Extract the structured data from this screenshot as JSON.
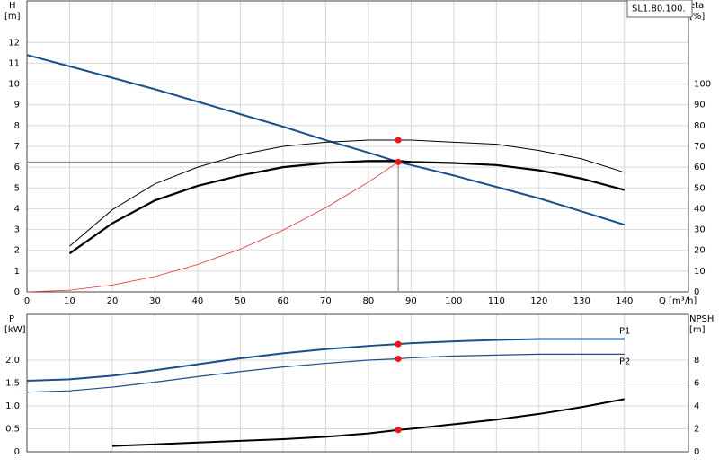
{
  "chart_data": [
    {
      "type": "line",
      "title": "SL1.80.100.",
      "y_label": "H",
      "y_unit": "[m]",
      "y2_label": "eta",
      "y2_unit": "[%]",
      "x_label": "Q [m³/h]",
      "x": [
        0,
        10,
        20,
        30,
        40,
        50,
        60,
        70,
        80,
        87,
        90,
        100,
        110,
        120,
        130,
        140
      ],
      "xlim": [
        0,
        155
      ],
      "xticks": [
        0,
        10,
        20,
        30,
        40,
        50,
        60,
        70,
        80,
        90,
        100,
        110,
        120,
        130,
        140
      ],
      "ylim": [
        0,
        14
      ],
      "yticks": [
        0,
        1,
        2,
        3,
        4,
        5,
        6,
        7,
        8,
        9,
        10,
        11,
        12
      ],
      "y2lim": [
        0,
        140
      ],
      "y2ticks": [
        0,
        10,
        20,
        30,
        40,
        50,
        60,
        70,
        80,
        90,
        100
      ],
      "grid": true,
      "marker_color": "#ff1010",
      "guide_color": "#808080",
      "series": [
        {
          "color": "#1c4f8a",
          "width": 2,
          "dot": true,
          "guides": true,
          "values": [
            11.4,
            10.85,
            10.3,
            9.75,
            9.15,
            8.55,
            7.95,
            7.3,
            6.7,
            6.25,
            6.1,
            5.6,
            5.05,
            4.5,
            3.87,
            3.23
          ]
        },
        {
          "color": "#000000",
          "width": 1,
          "dot": true,
          "axis": "y2",
          "values": [
            null,
            22,
            39.5,
            52,
            60,
            66,
            70,
            72,
            73,
            73,
            73,
            72,
            71,
            68,
            64,
            57.5
          ]
        },
        {
          "color": "#000000",
          "width": 2.2,
          "dot": false,
          "axis": "y2",
          "values": [
            null,
            18.5,
            33,
            44,
            51,
            56,
            60,
            62,
            63,
            63,
            62.5,
            62,
            61,
            58.5,
            54.5,
            49
          ]
        },
        {
          "color": "#e8302a",
          "width": 0.8,
          "dot": false,
          "values": [
            0,
            0.08,
            0.33,
            0.74,
            1.32,
            2.06,
            2.97,
            4.05,
            5.28,
            6.25,
            null,
            null,
            null,
            null,
            null,
            null
          ]
        }
      ]
    },
    {
      "type": "line",
      "y_label": "P",
      "y_unit": "[kW]",
      "y2_label": "NPSH",
      "y2_unit": "[m]",
      "x": [
        0,
        10,
        20,
        30,
        40,
        50,
        60,
        70,
        80,
        87,
        90,
        100,
        110,
        120,
        130,
        140
      ],
      "xlim": [
        0,
        155
      ],
      "ylim": [
        0,
        3
      ],
      "yticks": [
        0,
        0.5,
        {
          "value": 1,
          "label": "1.0"
        },
        1.5,
        {
          "value": 2,
          "label": "2.0"
        }
      ],
      "y2lim": [
        0,
        12
      ],
      "y2ticks": [
        0,
        2,
        4,
        6,
        8
      ],
      "grid": true,
      "marker_color": "#ff1010",
      "series": [
        {
          "name": "P1",
          "color": "#1c4f8a",
          "width": 2,
          "dot": true,
          "values": [
            1.55,
            1.58,
            1.66,
            1.78,
            1.91,
            2.04,
            2.15,
            2.24,
            2.31,
            2.35,
            2.37,
            2.41,
            2.44,
            2.46,
            2.46,
            2.46
          ]
        },
        {
          "name": "P2",
          "color": "#1c4f8a",
          "width": 1.2,
          "dot": true,
          "values": [
            1.3,
            1.33,
            1.41,
            1.52,
            1.64,
            1.75,
            1.85,
            1.93,
            2.0,
            2.03,
            2.05,
            2.09,
            2.11,
            2.13,
            2.13,
            2.13
          ]
        },
        {
          "color": "#000000",
          "width": 2,
          "dot": true,
          "axis": "y2",
          "values": [
            null,
            null,
            0.5,
            0.65,
            0.8,
            0.95,
            1.1,
            1.3,
            1.6,
            1.9,
            2.0,
            2.4,
            2.8,
            3.3,
            3.9,
            4.6
          ]
        }
      ]
    }
  ]
}
